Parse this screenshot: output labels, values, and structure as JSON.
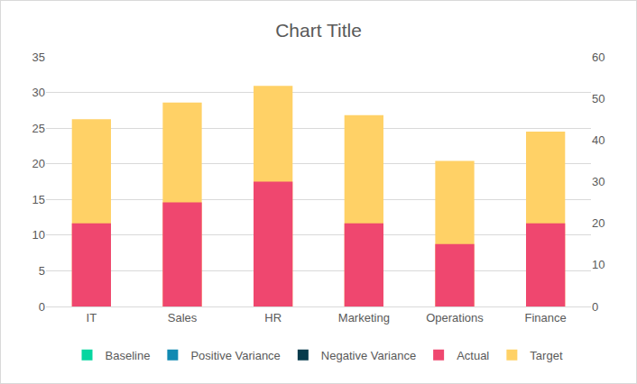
{
  "chart_data": {
    "type": "bar",
    "title": "Chart Title",
    "categories": [
      "IT",
      "Sales",
      "HR",
      "Marketing",
      "Operations",
      "Finance"
    ],
    "series": [
      {
        "name": "Baseline",
        "color": "#06d6a0",
        "values": [
          0,
          0,
          0,
          0,
          0,
          0
        ]
      },
      {
        "name": "Positive Variance",
        "color": "#118ab2",
        "values": [
          0,
          0,
          0,
          0,
          0,
          0
        ]
      },
      {
        "name": "Negative Variance",
        "color": "#073b4c",
        "values": [
          0,
          0,
          0,
          0,
          0,
          0
        ]
      },
      {
        "name": "Actual",
        "color": "#ef476f",
        "axis": "y2",
        "values": [
          20,
          25,
          30,
          20,
          15,
          20
        ]
      },
      {
        "name": "Target",
        "color": "#ffd166",
        "axis": "y2",
        "values": [
          45,
          49,
          53,
          46,
          35,
          42
        ]
      }
    ],
    "ylim": [
      0,
      35
    ],
    "yticks": [
      0,
      5,
      10,
      15,
      20,
      25,
      30,
      35
    ],
    "y2lim": [
      0,
      60
    ],
    "y2ticks": [
      0,
      10,
      20,
      30,
      40,
      50,
      60
    ],
    "stacked": false,
    "grid": true,
    "legend": "bottom"
  }
}
